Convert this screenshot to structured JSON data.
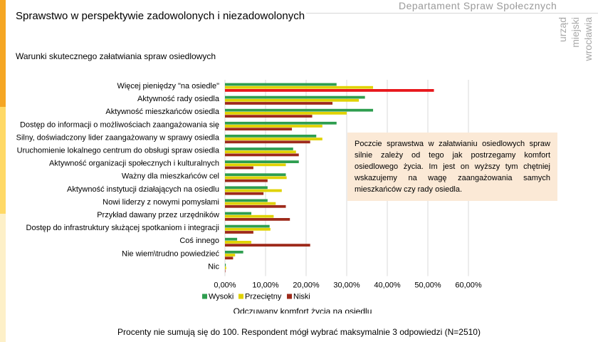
{
  "header": {
    "title": "Sprawstwo w perspektywie zadowolonych i niezadowolonych",
    "subtitle": "Warunki skutecznego załatwiania spraw osiedlowych",
    "brand": "Departament Spraw Społecznych",
    "logo_lines": [
      "urząd",
      "miejski",
      "wrocławia"
    ]
  },
  "note": "Poczcie sprawstwa w załatwianiu osiedlowych spraw silnie zależy od tego jak postrzegamy komfort osiedlowego życia. Im jest on wyższy tym chętniej wskazujemy na wagę zaangażowania samych mieszkańców czy rady osiedla.",
  "footnote": "Procenty nie sumują się do 100. Respondent mógł wybrać maksymalnie 3 odpowiedzi (N=2510)",
  "colors": {
    "accent_orange": "#f5a623",
    "accent_yellow": "#ffd966",
    "accent_light": "#fdf0c8",
    "note_bg": "#fbe9d6"
  },
  "chart_data": {
    "type": "bar",
    "orientation": "horizontal",
    "categories": [
      "Więcej pieniędzy \"na osiedle\"",
      "Aktywność rady osiedla",
      "Aktywność mieszkańców osiedla",
      "Dostęp do informacji o możliwościach zaangażowania się",
      "Silny, doświadczony lider zaangażowany w sprawy osiedla",
      "Uruchomienie lokalnego centrum do obsługi spraw osiedla",
      "Aktywność organizacji społecznych i kulturalnych",
      "Ważny dla mieszkańców cel",
      "Aktywność instytucji działających na osiedlu",
      "Nowi liderzy z nowymi pomysłami",
      "Przykład dawany przez urzędników",
      "Dostęp do infrastruktury służącej spotkaniom i integracji",
      "Coś innego",
      "Nie wiem\\trudno powiedzieć",
      "Nic"
    ],
    "series": [
      {
        "name": "Wysoki",
        "color": "#2e9e4f",
        "values": [
          27.5,
          34.5,
          36.5,
          27.5,
          22.5,
          16.8,
          18.2,
          15.0,
          10.5,
          10.5,
          6.5,
          11.0,
          3.0,
          4.5,
          0.2
        ]
      },
      {
        "name": "Przeciętny",
        "color": "#e0d200",
        "values": [
          36.5,
          33.0,
          30.0,
          24.0,
          24.0,
          17.5,
          15.0,
          15.2,
          14.0,
          12.5,
          12.0,
          11.2,
          6.5,
          2.5,
          0.3
        ]
      },
      {
        "name": "Niski",
        "color": "#9e2a1b",
        "values": [
          51.5,
          26.5,
          21.5,
          16.5,
          21.0,
          18.2,
          7.0,
          10.5,
          9.5,
          15.0,
          16.0,
          7.0,
          21.0,
          2.0,
          0.0
        ]
      }
    ],
    "highlight": {
      "series": "Niski",
      "category_index": 0,
      "color": "#e8171c"
    },
    "xlim": [
      0,
      60
    ],
    "xticks": [
      "0,00%",
      "10,00%",
      "20,00%",
      "30,00%",
      "40,00%",
      "50,00%",
      "60,00%"
    ],
    "xlabel": "Odczuwany komfort życia na osiedlu",
    "legend_position": "bottom",
    "grid": true
  }
}
